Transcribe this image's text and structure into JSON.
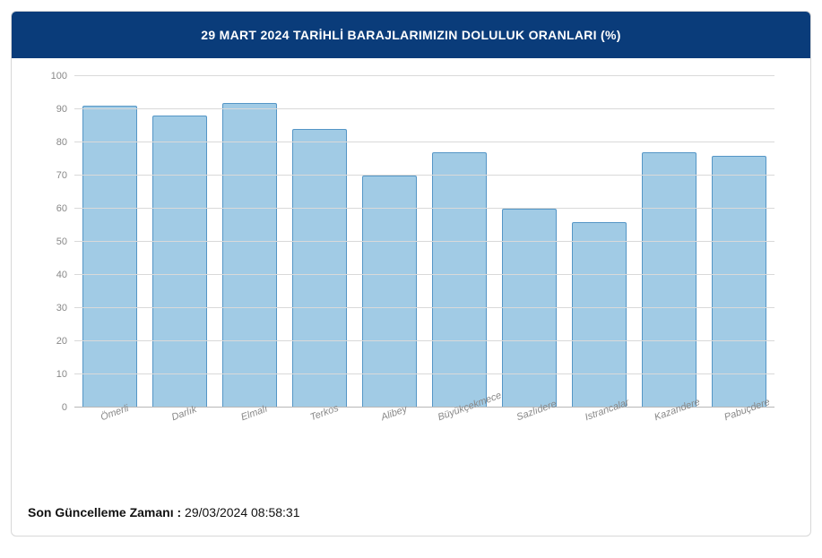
{
  "header": {
    "title": "29 MART 2024 TARİHLİ BARAJLARIMIZIN DOLULUK ORANLARI (%)",
    "background_color": "#0a3c7a",
    "text_color": "#ffffff",
    "fontsize": 14
  },
  "chart": {
    "type": "bar",
    "categories": [
      "Ömerli",
      "Darlık",
      "Elmalı",
      "Terkos",
      "Alibey",
      "Büyükçekmece",
      "Sazlıdere",
      "Istrancalar",
      "Kazandere",
      "Pabuçdere"
    ],
    "values": [
      91,
      88,
      92,
      84,
      70,
      77,
      60,
      56,
      77,
      76
    ],
    "bar_fill_color": "#a1cbe5",
    "bar_border_color": "#5596c6",
    "bar_width": 0.78,
    "ylim": [
      0,
      100
    ],
    "ytick_step": 10,
    "yticks": [
      0,
      10,
      20,
      30,
      40,
      50,
      60,
      70,
      80,
      90,
      100
    ],
    "grid_color": "#d9d9d9",
    "baseline_color": "#b8b8b8",
    "background_color": "#ffffff",
    "tick_label_color": "#888888",
    "tick_fontsize": 11,
    "x_label_rotation_deg": -20,
    "x_label_font_style": "italic"
  },
  "footer": {
    "label": "Son Güncelleme Zamanı :",
    "value": " 29/03/2024 08:58:31"
  }
}
